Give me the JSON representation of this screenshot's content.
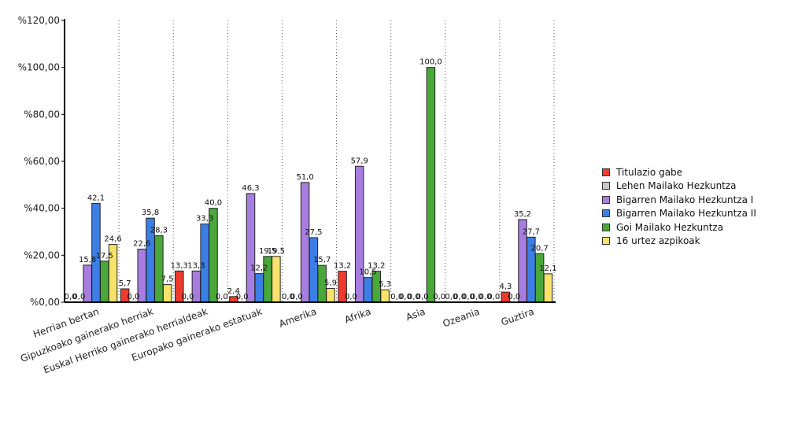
{
  "chart_data": {
    "type": "bar",
    "title": "",
    "xlabel": "",
    "ylabel": "",
    "ylim": [
      0,
      120
    ],
    "yticks": [
      0,
      20,
      40,
      60,
      80,
      100,
      120
    ],
    "ytick_labels": [
      "%0,00",
      "%20,00",
      "%40,00",
      "%60,00",
      "%80,00",
      "%100,00",
      "%120,00"
    ],
    "grid": "vertical dotted separators between categories",
    "legend_position": "right",
    "categories": [
      "Herrian bertan",
      "Gipuzkoako gainerako herriak",
      "Euskal Herriko gainerako herrialdeak",
      "Europako gainerako estatuak",
      "Amerika",
      "Afrika",
      "Asia",
      "Ozeania",
      "Guztira"
    ],
    "series": [
      {
        "name": "Titulazio gabe",
        "color": "#ee3b2e",
        "values": [
          0.0,
          5.7,
          13.3,
          2.4,
          0.0,
          13.2,
          0.0,
          0.0,
          4.3
        ],
        "labels": [
          "0,0",
          "5,7",
          "13,3",
          "2,4",
          "0,0",
          "13,2",
          "0,0",
          "0,0",
          "4,3"
        ]
      },
      {
        "name": "Lehen Mailako Hezkuntza",
        "color": "#c8c8c8",
        "values": [
          0.0,
          0.0,
          0.0,
          0.0,
          0.0,
          0.0,
          0.0,
          0.0,
          0.0
        ],
        "labels": [
          "0,0",
          "0,0",
          "0,0",
          "0,0",
          "0,0",
          "0,0",
          "0,0",
          "0,0",
          "0,0"
        ]
      },
      {
        "name": "Bigarren Mailako Hezkuntza I",
        "color": "#a77ee0",
        "values": [
          15.8,
          22.6,
          13.3,
          46.3,
          51.0,
          57.9,
          0.0,
          0.0,
          35.2
        ],
        "labels": [
          "15,8",
          "22,6",
          "13,3",
          "46,3",
          "51,0",
          "57,9",
          "0,0",
          "0,0",
          "35,2"
        ]
      },
      {
        "name": "Bigarren Mailako Hezkuntza II",
        "color": "#3b7fe6",
        "values": [
          42.1,
          35.8,
          33.3,
          12.2,
          27.5,
          10.5,
          0.0,
          0.0,
          27.7
        ],
        "labels": [
          "42,1",
          "35,8",
          "33,3",
          "12,2",
          "27,5",
          "10,5",
          "0,0",
          "0,0",
          "27,7"
        ]
      },
      {
        "name": "Goi Mailako Hezkuntza",
        "color": "#4aa83a",
        "values": [
          17.5,
          28.3,
          40.0,
          19.5,
          15.7,
          13.2,
          100.0,
          0.0,
          20.7
        ],
        "labels": [
          "17,5",
          "28,3",
          "40,0",
          "19,5",
          "15,7",
          "13,2",
          "100,0",
          "0,0",
          "20,7"
        ]
      },
      {
        "name": "16 urtez azpikoak",
        "color": "#f7e36a",
        "values": [
          24.6,
          7.5,
          0.0,
          19.5,
          5.9,
          5.3,
          0.0,
          0.0,
          12.1
        ],
        "labels": [
          "24,6",
          "7,5",
          "0,0",
          "19,5",
          "5,9",
          "5,3",
          "0,0",
          "0,0",
          "12,1"
        ]
      }
    ]
  }
}
